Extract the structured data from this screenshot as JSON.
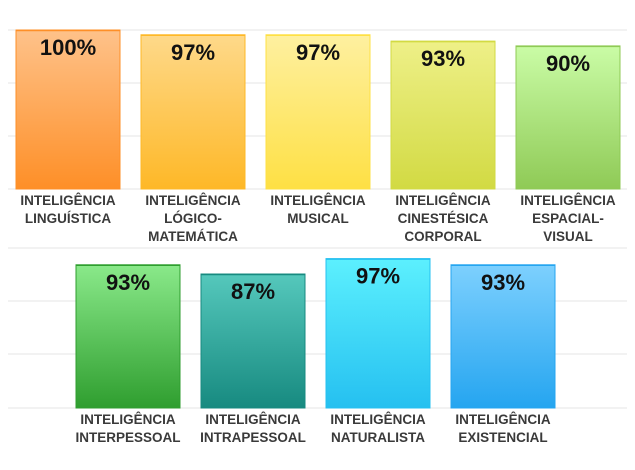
{
  "chart_data": [
    {
      "type": "bar",
      "categories": [
        [
          "INTELIGÊNCIA",
          "LINGUÍSTICA"
        ],
        [
          "INTELIGÊNCIA",
          "LÓGICO-",
          "MATEMÁTICA"
        ],
        [
          "INTELIGÊNCIA",
          "MUSICAL"
        ],
        [
          "INTELIGÊNCIA",
          "CINESTÉSICA",
          "CORPORAL"
        ],
        [
          "INTELIGÊNCIA",
          "ESPACIAL-",
          "VISUAL"
        ]
      ],
      "values": [
        100,
        97,
        97,
        93,
        90
      ],
      "value_labels": [
        "100%",
        "97%",
        "97%",
        "93%",
        "90%"
      ],
      "colors": [
        [
          "#fec28a",
          "#fe8f27"
        ],
        [
          "#fed98a",
          "#feb827"
        ],
        [
          "#fef0a0",
          "#fee044"
        ],
        [
          "#eef088",
          "#d2da43"
        ],
        [
          "#cafca6",
          "#8fca56"
        ]
      ],
      "grid": true
    },
    {
      "type": "bar",
      "categories": [
        [
          "INTELIGÊNCIA",
          "INTERPESSOAL"
        ],
        [
          "INTELIGÊNCIA",
          "INTRAPESSOAL"
        ],
        [
          "INTELIGÊNCIA",
          "NATURALISTA"
        ],
        [
          "INTELIGÊNCIA",
          "EXISTENCIAL"
        ]
      ],
      "values": [
        93,
        87,
        97,
        93
      ],
      "value_labels": [
        "93%",
        "87%",
        "97%",
        "93%"
      ],
      "colors": [
        [
          "#8ae98a",
          "#2f9e2f"
        ],
        [
          "#55c8bc",
          "#178a80"
        ],
        [
          "#5cf0fe",
          "#25c0f0"
        ],
        [
          "#7dd0fe",
          "#25a5f0"
        ]
      ],
      "grid": true
    }
  ]
}
